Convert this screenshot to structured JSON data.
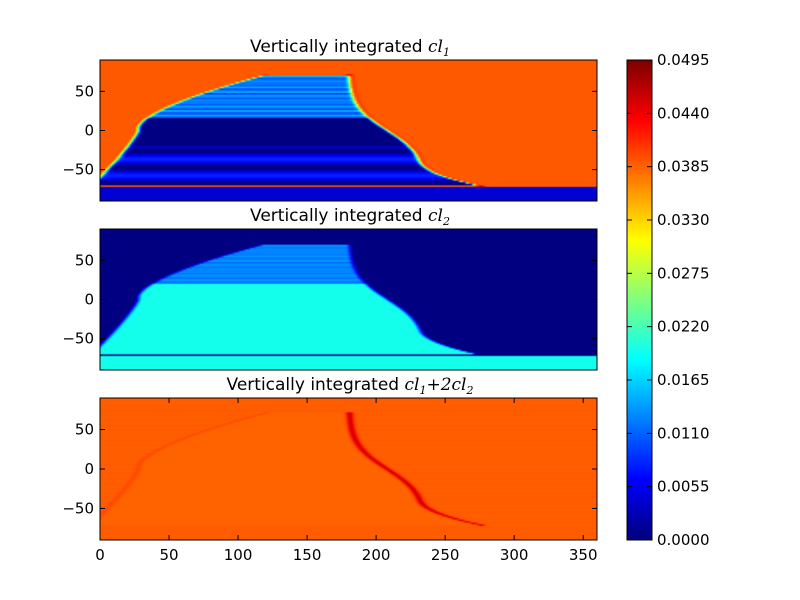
{
  "chart_data": [
    {
      "type": "heatmap",
      "title_prefix": "Vertically integrated ",
      "title_math": "cl",
      "title_sub": "1",
      "title_tail": "",
      "title_tail_sub": "",
      "xlim": [
        0,
        360
      ],
      "ylim": [
        -90,
        90
      ],
      "yticks": [
        50,
        0,
        -50
      ],
      "xticks_visible": false,
      "field": {
        "background": 0.039,
        "interior": 0.0,
        "boundary_peak": 0.045,
        "upper_band": 0.016,
        "lower_band": 0.004
      }
    },
    {
      "type": "heatmap",
      "title_prefix": "Vertically integrated ",
      "title_math": "cl",
      "title_sub": "2",
      "title_tail": "",
      "title_tail_sub": "",
      "xlim": [
        0,
        360
      ],
      "ylim": [
        -90,
        90
      ],
      "yticks": [
        50,
        0,
        -50
      ],
      "xticks_visible": false,
      "field": {
        "background": 0.0,
        "interior": 0.0195,
        "upper_band": 0.014,
        "polar_band": 0.0195
      }
    },
    {
      "type": "heatmap",
      "title_prefix": "Vertically integrated ",
      "title_math": "cl",
      "title_sub": "1",
      "title_tail": "+2cl",
      "title_tail_sub": "2",
      "xlim": [
        0,
        360
      ],
      "ylim": [
        -90,
        90
      ],
      "yticks": [
        50,
        0,
        -50
      ],
      "xticks": [
        0,
        50,
        100,
        150,
        200,
        250,
        300,
        350
      ],
      "xticks_visible": true,
      "field": {
        "background": 0.039,
        "interior": 0.0385,
        "boundary_peak": 0.046
      }
    }
  ],
  "colorbar": {
    "colormap": "jet",
    "min": 0.0,
    "max": 0.0495,
    "ticks": [
      "0.0495",
      "0.0440",
      "0.0385",
      "0.0330",
      "0.0275",
      "0.0220",
      "0.0165",
      "0.0110",
      "0.0055",
      "0.0000"
    ]
  }
}
